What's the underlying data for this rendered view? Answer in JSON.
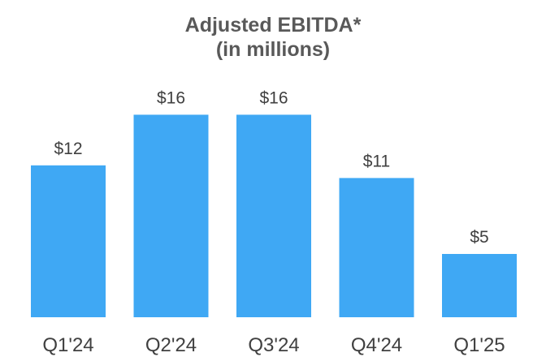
{
  "chart_data": {
    "type": "bar",
    "title": "Adjusted EBITDA*",
    "subtitle": "(in millions)",
    "categories": [
      "Q1'24",
      "Q2'24",
      "Q3'24",
      "Q4'24",
      "Q1'25"
    ],
    "values": [
      12,
      16,
      16,
      11,
      5
    ],
    "value_labels": [
      "$12",
      "$16",
      "$16",
      "$11",
      "$5"
    ],
    "xlabel": "",
    "ylabel": "",
    "grid": false,
    "legend": "none",
    "bar_color": "#3fa8f4"
  }
}
